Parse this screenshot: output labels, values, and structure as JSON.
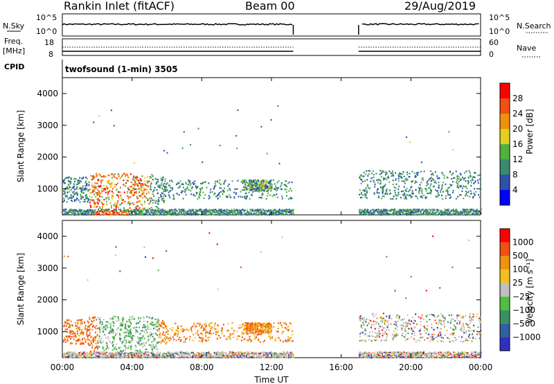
{
  "header": {
    "site": "Rankin Inlet (fitACF)",
    "beam": "Beam 00",
    "date": "29/Aug/2019"
  },
  "colors": {
    "power_scale": [
      "#0000ff",
      "#3050b0",
      "#3a8a70",
      "#50b040",
      "#e0d020",
      "#f09010",
      "#f05010",
      "#ff0000"
    ],
    "velocity_scale": [
      "#3030c0",
      "#3060a0",
      "#3a9060",
      "#50c040",
      "#c0c0c0",
      "#f0c020",
      "#f09010",
      "#f05010",
      "#ff0000"
    ],
    "axis": "#000000"
  },
  "top_panels": {
    "nsky_label": "N.Sky",
    "nsky_ticks": [
      "10^5",
      "10^0"
    ],
    "nsearch_label": "N.Search",
    "nsearch_ticks": [
      "10^5",
      "10^0"
    ],
    "freq_label": "Freq.",
    "freq_unit": "[MHz]",
    "freq_ticks": [
      "18",
      "8"
    ],
    "nave_label": "Nave",
    "nave_ticks": [
      "60",
      "0"
    ],
    "cpid_label": "CPID",
    "cpid_value": "twofsound (1-min) 3505"
  },
  "chart_data": [
    {
      "type": "heatmap",
      "name": "power",
      "ylabel": "Slant Range [km]",
      "ylim": [
        180,
        4500
      ],
      "y_ticks": [
        "1000",
        "2000",
        "3000",
        "4000"
      ],
      "xlim_hours": [
        0,
        24
      ],
      "colorbar_label": "Power [dB]",
      "colorbar_ticks": [
        "4",
        "8",
        "12",
        "16",
        "20",
        "24",
        "28"
      ],
      "data_gap_hours": [
        13.25,
        17.0
      ]
    },
    {
      "type": "heatmap",
      "name": "velocity",
      "ylabel": "Slant Range [km]",
      "ylim": [
        180,
        4500
      ],
      "y_ticks": [
        "1000",
        "2000",
        "3000",
        "4000"
      ],
      "xlabel": "Time UT",
      "x_ticks": [
        "00:00",
        "04:00",
        "08:00",
        "12:00",
        "16:00",
        "20:00",
        "00:00"
      ],
      "xlim_hours": [
        0,
        24
      ],
      "colorbar_label": "Velocity [m s⁻¹]",
      "colorbar_ticks": [
        "1000",
        "500",
        "100",
        "25",
        "−25",
        "−100",
        "−500",
        "−1000"
      ],
      "data_gap_hours": [
        13.25,
        17.0
      ]
    }
  ]
}
